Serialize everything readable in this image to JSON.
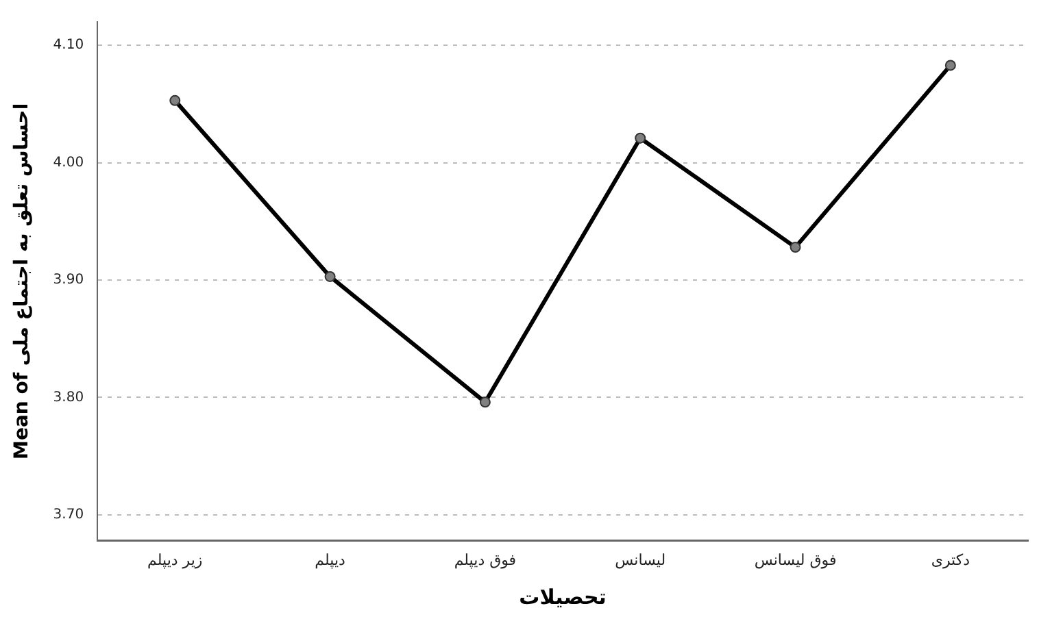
{
  "chart_data": {
    "type": "line",
    "xlabel": "تحصیلات",
    "ylabel": "Mean of احساس تعلق به اجتماع ملی",
    "categories": [
      "زیر دیپلم",
      "دیپلم",
      "فوق دیپلم",
      "لیسانس",
      "فوق لیسانس",
      "دکتری"
    ],
    "series": [
      {
        "color": "#000000",
        "values": [
          4.053,
          3.903,
          3.796,
          4.021,
          3.928,
          4.083
        ]
      }
    ],
    "ylim": [
      3.678,
      4.12
    ],
    "yticks": [
      {
        "value": 3.7,
        "label": "3.70"
      },
      {
        "value": 3.8,
        "label": "3.80"
      },
      {
        "value": 3.9,
        "label": "3.90"
      },
      {
        "value": 4.0,
        "label": "4.00"
      },
      {
        "value": 4.1,
        "label": "4.10"
      }
    ],
    "grid": "y",
    "legend": false,
    "marker": "circle",
    "line_style": "solid"
  }
}
